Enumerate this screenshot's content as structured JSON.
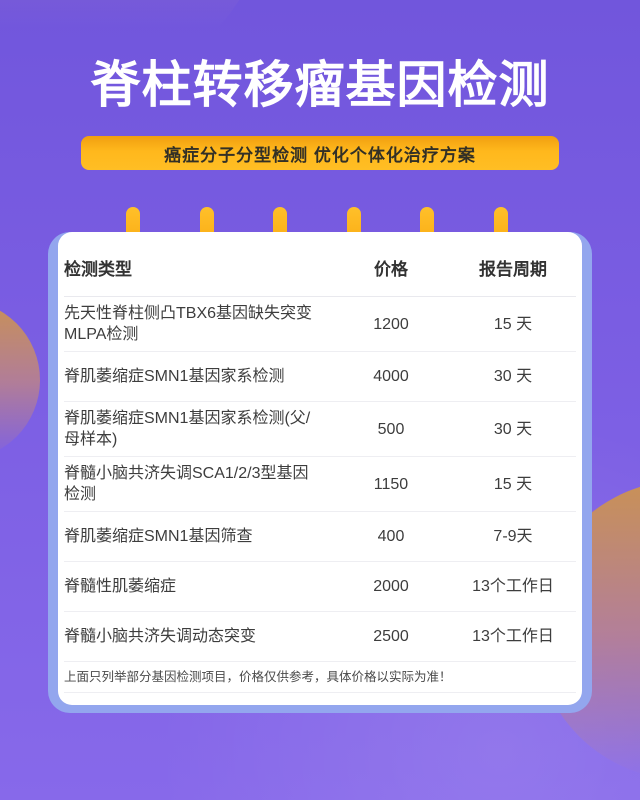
{
  "title": "脊柱转移瘤基因检测",
  "subtitle": "癌症分子分型检测 优化个体化治疗方案",
  "table": {
    "headers": [
      "检测类型",
      "价格",
      "报告周期"
    ],
    "rows": [
      {
        "type": "先天性脊柱侧凸TBX6基因缺失突变MLPA检测",
        "price": "1200",
        "period": "15 天"
      },
      {
        "type": "脊肌萎缩症SMN1基因家系检测",
        "price": "4000",
        "period": "30 天"
      },
      {
        "type": "脊肌萎缩症SMN1基因家系检测(父/母样本)",
        "price": "500",
        "period": "30 天"
      },
      {
        "type": "脊髓小脑共济失调SCA1/2/3型基因检测",
        "price": "1150",
        "period": "15 天"
      },
      {
        "type": "脊肌萎缩症SMN1基因筛查",
        "price": "400",
        "period": "7-9天"
      },
      {
        "type": "脊髓性肌萎缩症",
        "price": "2000",
        "period": "13个工作日"
      },
      {
        "type": "脊髓小脑共济失调动态突变",
        "price": "2500",
        "period": "13个工作日"
      }
    ],
    "note": "上面只列举部分基因检测项目，价格仅供参考，具体价格以实际为准！"
  },
  "pin_count": 6,
  "colors": {
    "background_purple": "#7a5de2",
    "notepad_blue": "#93a6ee",
    "card_white": "#ffffff",
    "accent_yellow": "#fcb117",
    "pin_hole_purple": "#7a57d8",
    "decor_orange": "#c99156",
    "title_white": "#ffffff",
    "text_dark": "#3d3d3d"
  }
}
